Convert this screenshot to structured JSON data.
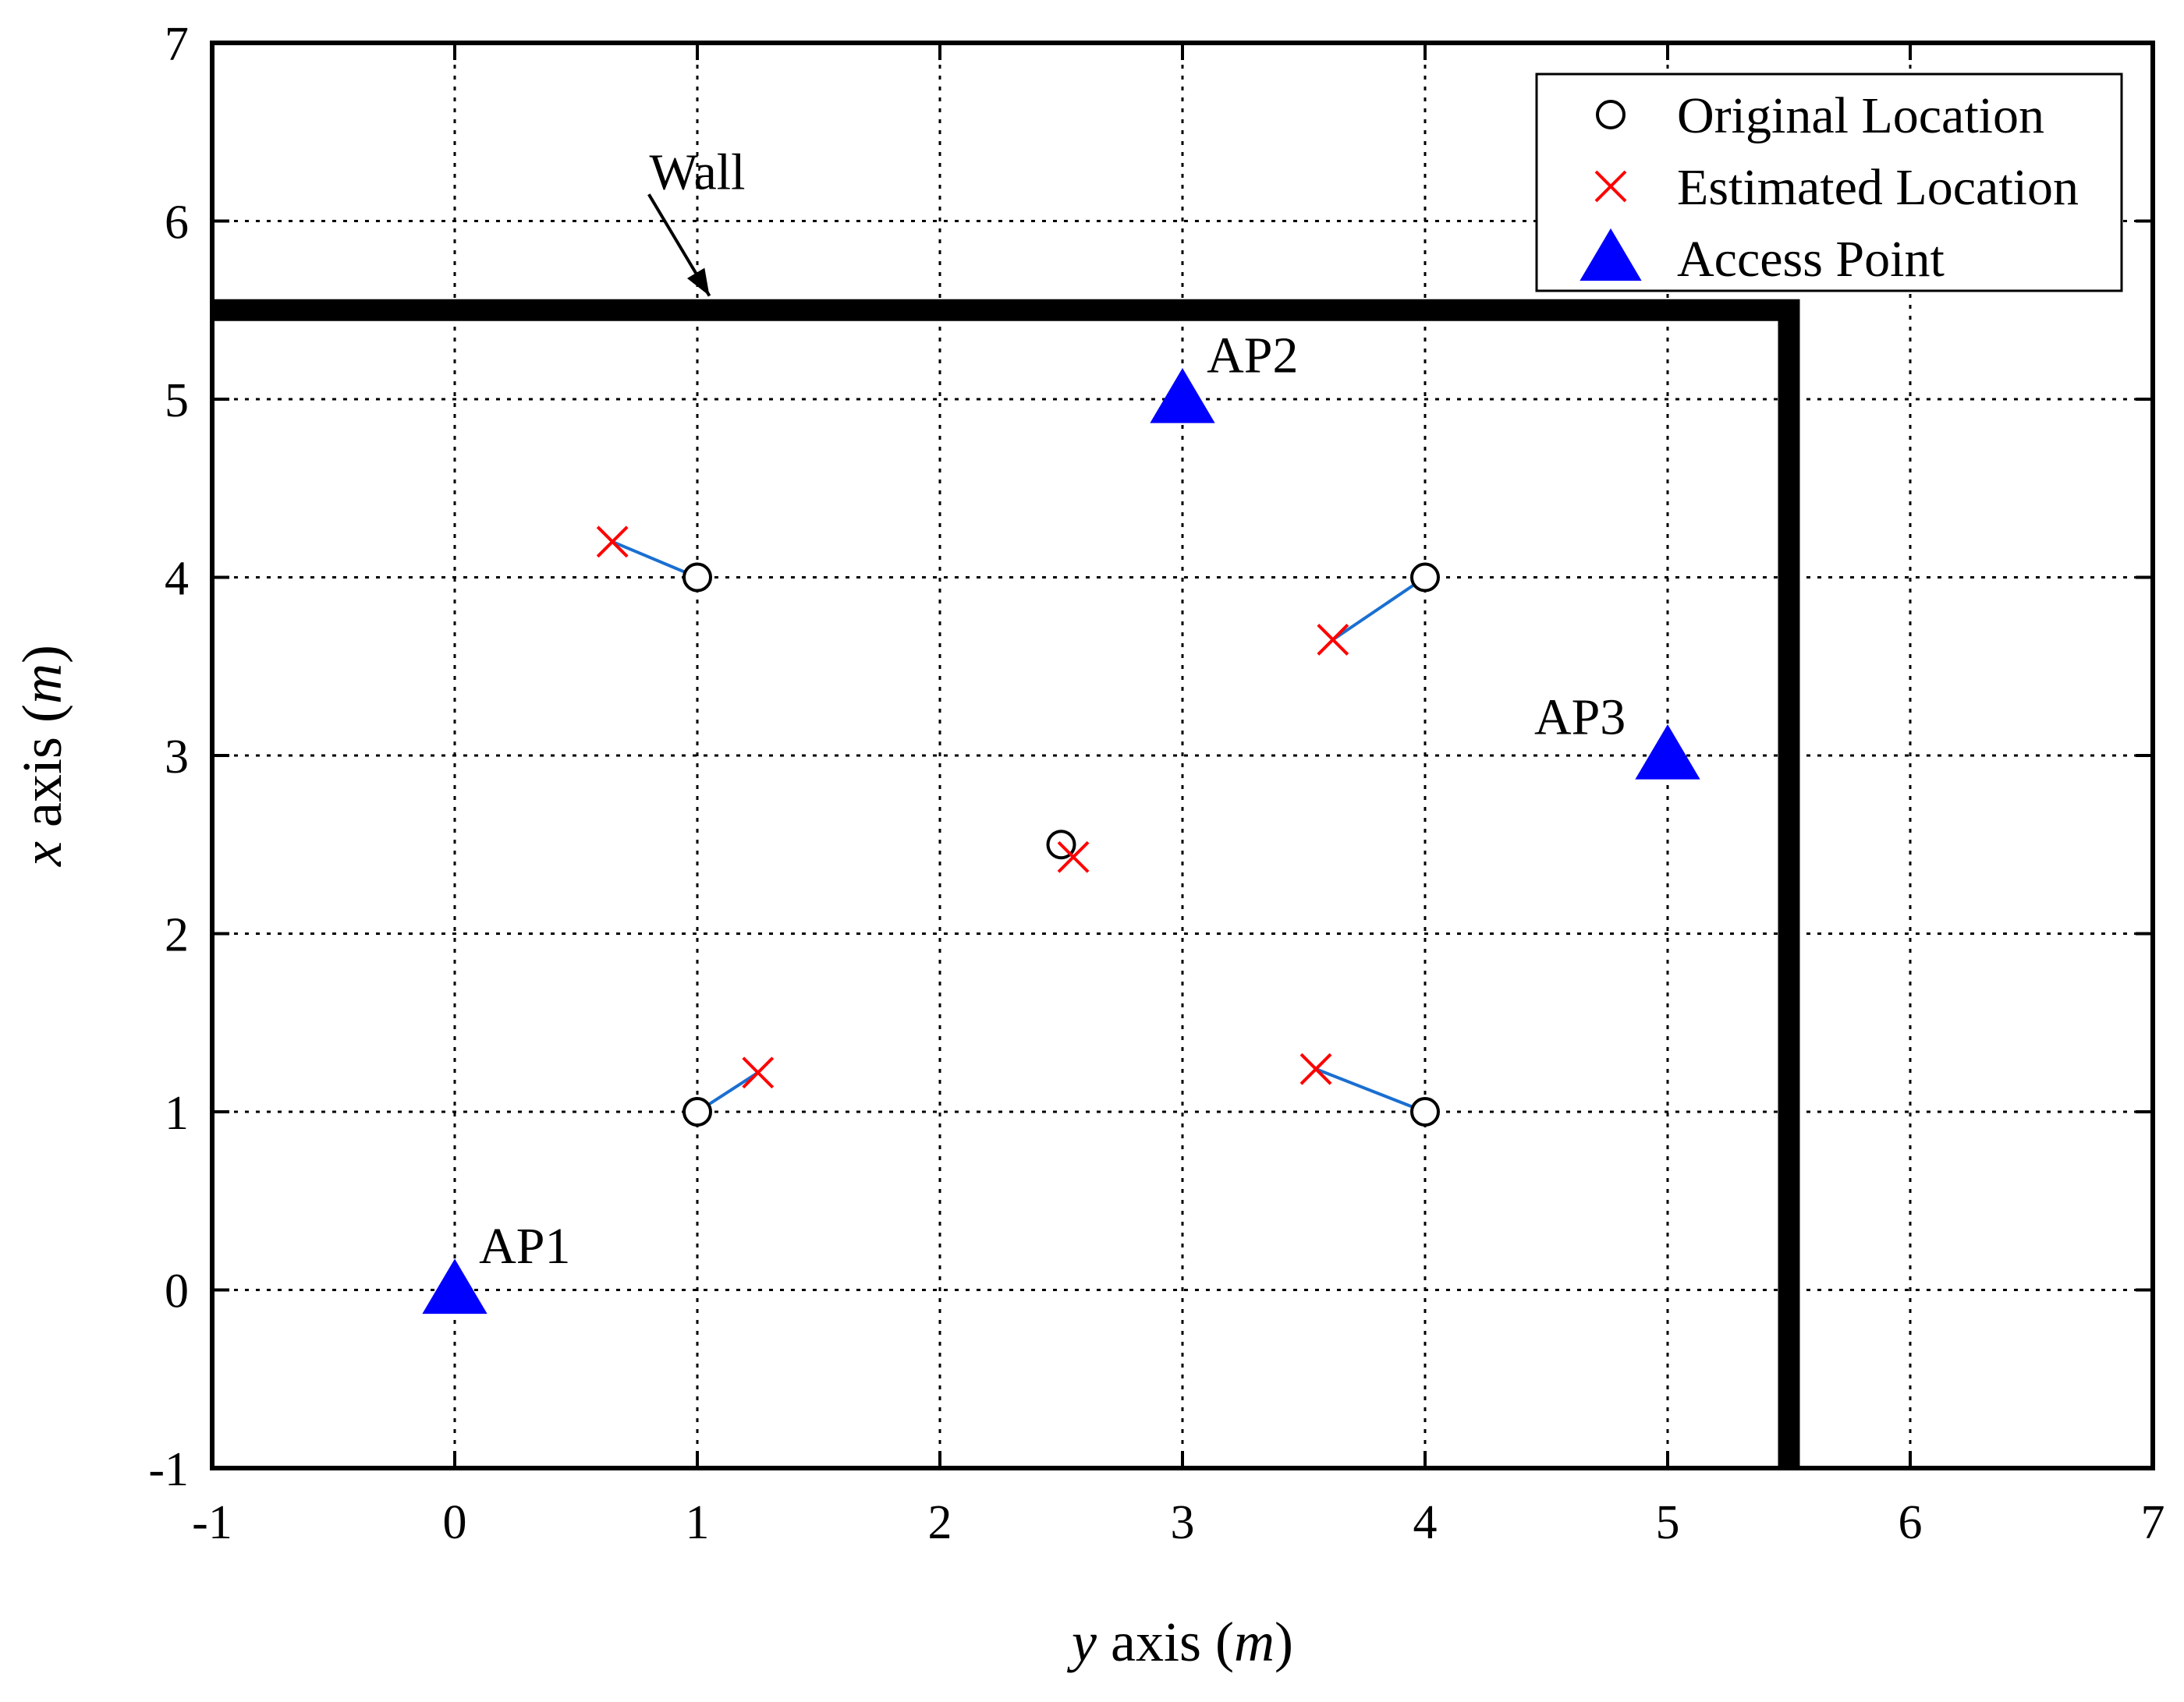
{
  "chart_data": {
    "type": "scatter",
    "title": "",
    "xlabel": {
      "italic": "y",
      "text": " axis (",
      "unit": "m",
      "close": ")"
    },
    "ylabel": {
      "italic": "x",
      "text": " axis (",
      "unit": "m",
      "close": ")"
    },
    "xlim": [
      -1,
      7
    ],
    "ylim": [
      -1,
      7
    ],
    "xticks": [
      -1,
      0,
      1,
      2,
      3,
      4,
      5,
      6,
      7
    ],
    "yticks": [
      -1,
      0,
      1,
      2,
      3,
      4,
      5,
      6,
      7
    ],
    "grid": true,
    "legend_position": "top-right",
    "series": [
      {
        "name": "Original Location",
        "marker": "circle",
        "color": "#000000",
        "points": [
          [
            1,
            4
          ],
          [
            4,
            4
          ],
          [
            2.5,
            2.5
          ],
          [
            1,
            1
          ],
          [
            4,
            1
          ]
        ]
      },
      {
        "name": "Estimated Location",
        "marker": "x",
        "color": "#ff0000",
        "points": [
          [
            0.65,
            4.2
          ],
          [
            3.62,
            3.65
          ],
          [
            2.55,
            2.43
          ],
          [
            1.25,
            1.22
          ],
          [
            3.55,
            1.24
          ]
        ]
      },
      {
        "name": "Access Point",
        "marker": "triangle",
        "color": "#0000ff",
        "points": [
          [
            0,
            0
          ],
          [
            3,
            5
          ],
          [
            5,
            3
          ]
        ]
      }
    ],
    "error_lines": {
      "color": "#1a6fd1",
      "pairs": [
        [
          [
            1,
            4
          ],
          [
            0.65,
            4.2
          ]
        ],
        [
          [
            4,
            4
          ],
          [
            3.62,
            3.65
          ]
        ],
        [
          [
            2.5,
            2.5
          ],
          [
            2.55,
            2.43
          ]
        ],
        [
          [
            1,
            1
          ],
          [
            1.25,
            1.22
          ]
        ],
        [
          [
            4,
            1
          ],
          [
            3.55,
            1.24
          ]
        ]
      ]
    },
    "wall": {
      "label": "Wall",
      "color": "#000000",
      "path": [
        [
          -1,
          5.5
        ],
        [
          5.5,
          5.5
        ],
        [
          5.5,
          -1
        ]
      ],
      "arrow_from": [
        0.8,
        6.15
      ],
      "arrow_to": [
        1.05,
        5.58
      ],
      "label_at": [
        1.0,
        6.18
      ]
    },
    "annotations": [
      {
        "text": "AP1",
        "at": [
          0.1,
          0.15
        ]
      },
      {
        "text": "AP2",
        "at": [
          3.1,
          5.15
        ]
      },
      {
        "text": "AP3",
        "at": [
          4.45,
          3.12
        ]
      }
    ]
  }
}
